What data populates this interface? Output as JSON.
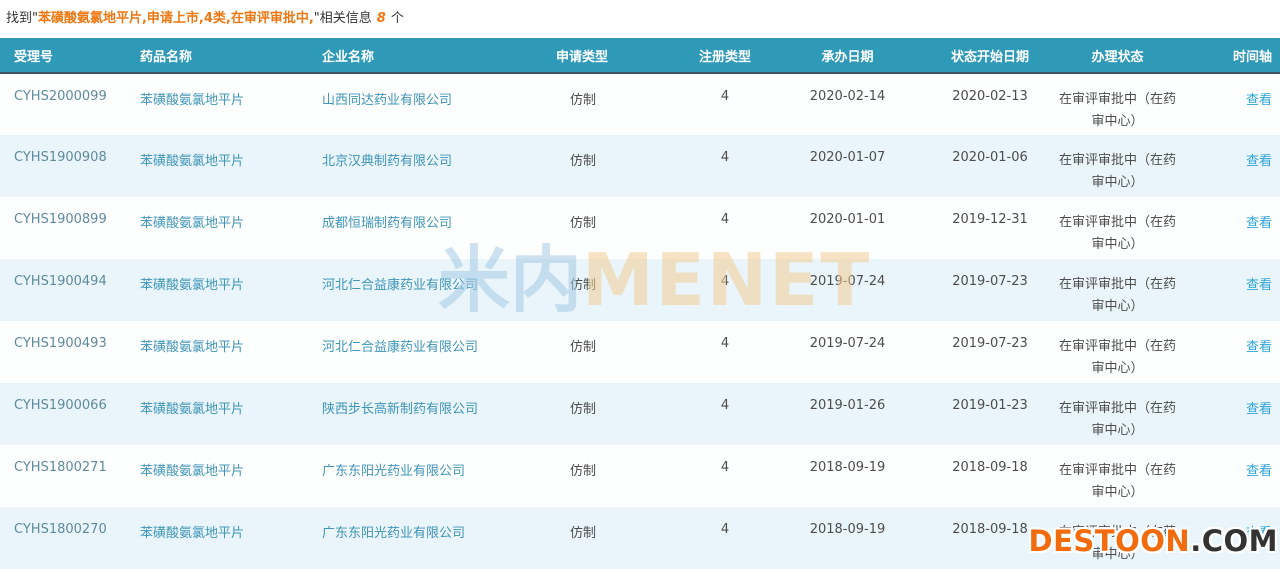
{
  "summary": {
    "prefix": "找到\"",
    "keywords": "苯磺酸氨氯地平片,申请上市,4类,在审评审批中,",
    "suffix": "\"相关信息",
    "count": "8",
    "unit": "个"
  },
  "table": {
    "columns": [
      "受理号",
      "药品名称",
      "企业名称",
      "申请类型",
      "注册类型",
      "承办日期",
      "状态开始日期",
      "办理状态",
      "时间轴"
    ],
    "rows": [
      {
        "accept_no": "CYHS2000099",
        "drug": "苯磺酸氨氯地平片",
        "company": "山西同达药业有限公司",
        "apply_type": "仿制",
        "reg_type": "4",
        "accept_date": "2020-02-14",
        "status_date": "2020-02-13",
        "status": "在审评审批中（在药审中心）",
        "action": "查看"
      },
      {
        "accept_no": "CYHS1900908",
        "drug": "苯磺酸氨氯地平片",
        "company": "北京汉典制药有限公司",
        "apply_type": "仿制",
        "reg_type": "4",
        "accept_date": "2020-01-07",
        "status_date": "2020-01-06",
        "status": "在审评审批中（在药审中心）",
        "action": "查看"
      },
      {
        "accept_no": "CYHS1900899",
        "drug": "苯磺酸氨氯地平片",
        "company": "成都恒瑞制药有限公司",
        "apply_type": "仿制",
        "reg_type": "4",
        "accept_date": "2020-01-01",
        "status_date": "2019-12-31",
        "status": "在审评审批中（在药审中心）",
        "action": "查看"
      },
      {
        "accept_no": "CYHS1900494",
        "drug": "苯磺酸氨氯地平片",
        "company": "河北仁合益康药业有限公司",
        "apply_type": "仿制",
        "reg_type": "4",
        "accept_date": "2019-07-24",
        "status_date": "2019-07-23",
        "status": "在审评审批中（在药审中心）",
        "action": "查看"
      },
      {
        "accept_no": "CYHS1900493",
        "drug": "苯磺酸氨氯地平片",
        "company": "河北仁合益康药业有限公司",
        "apply_type": "仿制",
        "reg_type": "4",
        "accept_date": "2019-07-24",
        "status_date": "2019-07-23",
        "status": "在审评审批中（在药审中心）",
        "action": "查看"
      },
      {
        "accept_no": "CYHS1900066",
        "drug": "苯磺酸氨氯地平片",
        "company": "陕西步长高新制药有限公司",
        "apply_type": "仿制",
        "reg_type": "4",
        "accept_date": "2019-01-26",
        "status_date": "2019-01-23",
        "status": "在审评审批中（在药审中心）",
        "action": "查看"
      },
      {
        "accept_no": "CYHS1800271",
        "drug": "苯磺酸氨氯地平片",
        "company": "广东东阳光药业有限公司",
        "apply_type": "仿制",
        "reg_type": "4",
        "accept_date": "2018-09-19",
        "status_date": "2018-09-18",
        "status": "在审评审批中（在药审中心）",
        "action": "查看"
      },
      {
        "accept_no": "CYHS1800270",
        "drug": "苯磺酸氨氯地平片",
        "company": "广东东阳光药业有限公司",
        "apply_type": "仿制",
        "reg_type": "4",
        "accept_date": "2018-09-19",
        "status_date": "2018-09-18",
        "status": "在审评审批中（在药审中心）",
        "action": "查看"
      }
    ]
  },
  "watermarks": {
    "site_cn": "米内",
    "site_en": "MENET",
    "corner_main": "DESTOON",
    "corner_suffix": ".COM"
  },
  "colors": {
    "header_bg": "#2f99b8",
    "accent_orange": "#ee7711",
    "link_blue": "#30a5d8",
    "row_alt_bg": "#e9f5fa"
  }
}
